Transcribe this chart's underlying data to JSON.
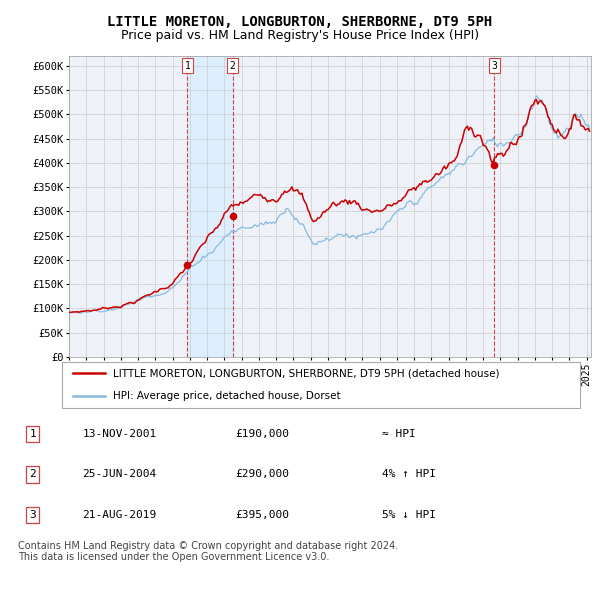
{
  "title": "LITTLE MORETON, LONGBURTON, SHERBORNE, DT9 5PH",
  "subtitle": "Price paid vs. HM Land Registry's House Price Index (HPI)",
  "title_fontsize": 10,
  "subtitle_fontsize": 9,
  "ylim": [
    0,
    620000
  ],
  "yticks": [
    0,
    50000,
    100000,
    150000,
    200000,
    250000,
    300000,
    350000,
    400000,
    450000,
    500000,
    550000,
    600000
  ],
  "ytick_labels": [
    "£0",
    "£50K",
    "£100K",
    "£150K",
    "£200K",
    "£250K",
    "£300K",
    "£350K",
    "£400K",
    "£450K",
    "£500K",
    "£550K",
    "£600K"
  ],
  "sale1_text": "13-NOV-2001",
  "sale1_price_label": "£190,000",
  "sale1_hpi": "≈ HPI",
  "sale2_text": "25-JUN-2004",
  "sale2_price_label": "£290,000",
  "sale2_hpi": "4% ↑ HPI",
  "sale3_text": "21-AUG-2019",
  "sale3_price_label": "£395,000",
  "sale3_hpi": "5% ↓ HPI",
  "legend_property": "LITTLE MORETON, LONGBURTON, SHERBORNE, DT9 5PH (detached house)",
  "legend_hpi": "HPI: Average price, detached house, Dorset",
  "property_line_color": "#cc0000",
  "hpi_line_color": "#88bbdd",
  "sale_marker_color": "#cc0000",
  "vline_color": "#cc4444",
  "shade_color": "#ddeeff",
  "grid_color": "#cccccc",
  "plot_bg_color": "#eef2f8",
  "copyright_text": "Contains HM Land Registry data © Crown copyright and database right 2024.\nThis data is licensed under the Open Government Licence v3.0.",
  "footnote_fontsize": 7.0
}
